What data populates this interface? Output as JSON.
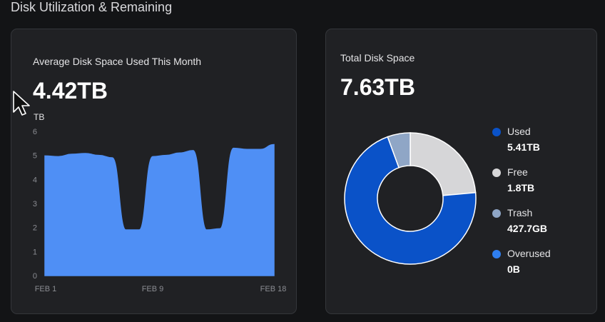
{
  "section": {
    "title": "Disk Utilization & Remaining"
  },
  "avg_card": {
    "title": "Average Disk Space Used This Month",
    "value": "4.42TB",
    "unit": "TB"
  },
  "total_card": {
    "title": "Total Disk Space",
    "value": "7.63TB",
    "legend": [
      {
        "label": "Used",
        "value": "5.41TB",
        "color": "#0a52c8",
        "icon": "circle"
      },
      {
        "label": "Free",
        "value": "1.8TB",
        "color": "#d6d6d8",
        "icon": "circle"
      },
      {
        "label": "Trash",
        "value": "427.7GB",
        "color": "#8fa6c6",
        "icon": "circle"
      },
      {
        "label": "Overused",
        "value": "0B",
        "color": "#2f7ff0",
        "icon": "circle"
      }
    ]
  },
  "chart_data": [
    {
      "type": "area",
      "x_ticks": [
        "FEB 1",
        "FEB 9",
        "FEB 18"
      ],
      "y_ticks": [
        "0",
        "1",
        "2",
        "3",
        "4",
        "5",
        "6"
      ],
      "ylim": [
        0,
        6
      ],
      "ylabel": "TB",
      "grid": false,
      "color": "#4f8ff5",
      "x": [
        "FEB 1",
        "FEB 2",
        "FEB 3",
        "FEB 4",
        "FEB 5",
        "FEB 6",
        "FEB 7",
        "FEB 8",
        "FEB 9",
        "FEB 10",
        "FEB 11",
        "FEB 12",
        "FEB 13",
        "FEB 14",
        "FEB 15",
        "FEB 16",
        "FEB 17",
        "FEB 18"
      ],
      "values": [
        4.98,
        4.95,
        5.05,
        5.08,
        5.0,
        4.9,
        1.9,
        1.9,
        4.95,
        5.0,
        5.1,
        5.2,
        1.9,
        1.95,
        5.3,
        5.25,
        5.25,
        5.45
      ]
    },
    {
      "type": "pie",
      "donut": true,
      "categories": [
        "Used",
        "Free",
        "Trash",
        "Overused"
      ],
      "values": [
        5.41,
        1.8,
        0.4277,
        0
      ],
      "colors": [
        "#0a52c8",
        "#d6d6d8",
        "#8fa6c6",
        "#2f7ff0"
      ]
    }
  ]
}
